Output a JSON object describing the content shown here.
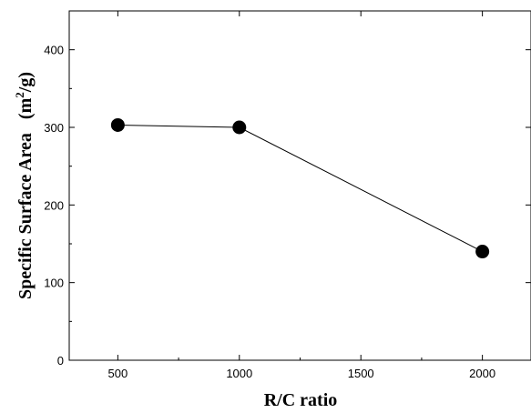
{
  "chart_data": {
    "type": "line",
    "xlabel": "R/C ratio",
    "ylabel": "Specific Surface Area",
    "ylabel_unit_prefix": "(m",
    "ylabel_unit_sup": "2",
    "ylabel_unit_suffix": "/g)",
    "xlim": [
      300,
      2200
    ],
    "ylim": [
      0,
      450
    ],
    "x_ticks": [
      500,
      1000,
      1500,
      2000
    ],
    "y_ticks": [
      0,
      100,
      200,
      300,
      400
    ],
    "grid": false,
    "series": [
      {
        "x": [
          500,
          1000,
          2000
        ],
        "y": [
          303,
          300,
          140
        ]
      }
    ]
  }
}
